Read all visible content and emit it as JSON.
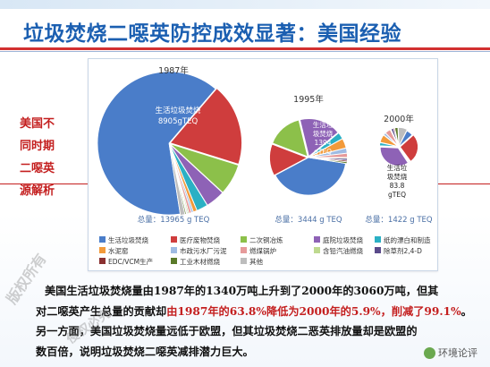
{
  "title": "垃圾焚烧二噁英防控成效显著：美国经验",
  "left_labels": [
    "美国不",
    "同时期",
    "二噁英",
    "源解析"
  ],
  "paragraph": {
    "p1": "美国生活垃圾焚烧量由1987年的1340万吨上升到了2000年的3060万吨，但其",
    "p2_a": "对二噁英产生总量的贡献却",
    "p2_b": "由1987年的63.8%降低为2000年的5.9%，削减了99.1%",
    "p2_c": "。",
    "p3": "另一方面，美国垃圾焚烧量远低于欧盟，但其垃圾焚烧二恶英排放量却是欧盟的",
    "p4": "数百倍，说明垃圾焚烧二噁英减排潜力巨大。"
  },
  "watermark": [
    "版权所有",
    "侵权必究"
  ],
  "brand": "环境论评",
  "colors": {
    "title": "#1b5fb1",
    "accent_red": "#c41f1f",
    "pie_palette": [
      "#4a7dc9",
      "#cf3d3d",
      "#8cc04a",
      "#8e62b6",
      "#2bb0c4",
      "#f29a3a",
      "#9fbbe3",
      "#e69a9a",
      "#bed98f",
      "#5a4a8a",
      "#8a3030",
      "#5a7a2a",
      "#bdbdbd"
    ]
  },
  "chart_data": {
    "type": "pie",
    "legend": [
      "生活垃圾焚烧",
      "医疗废物焚烧",
      "二次铜冶炼",
      "庭院垃圾焚烧",
      "纸的漂白和制造",
      "水泥窑",
      "市政污水厂污泥",
      "燃煤锅炉",
      "含铅汽油燃烧",
      "除草剂2,4-D",
      "EDC/VCM生产",
      "工业木材燃烧",
      "其他"
    ],
    "charts": [
      {
        "year": "1987年",
        "total": "总量：13965 g TEQ",
        "inner_label": [
          "生活垃圾焚烧",
          "8905gTEQ"
        ],
        "values": [
          8905,
          2590,
          983,
          604,
          356,
          117,
          60,
          80,
          40,
          28,
          20,
          40,
          142
        ]
      },
      {
        "year": "1995年",
        "total": "总量：3444 g TEQ",
        "inner_label": [
          "生活垃",
          "圾焚烧",
          "1394",
          "gTEQ"
        ],
        "values": [
          1394,
          477,
          541,
          628,
          100,
          145,
          76,
          60,
          15,
          28,
          22,
          25,
          -67
        ]
      },
      {
        "year": "2000年",
        "total": "总量：1422 g TEQ",
        "inner_label": [
          "生活垃",
          "圾焚烧",
          "83.8",
          "gTEQ"
        ],
        "values": [
          83.8,
          377,
          11,
          499,
          40,
          100,
          30,
          70,
          10,
          30,
          15,
          40,
          116
        ]
      }
    ]
  }
}
